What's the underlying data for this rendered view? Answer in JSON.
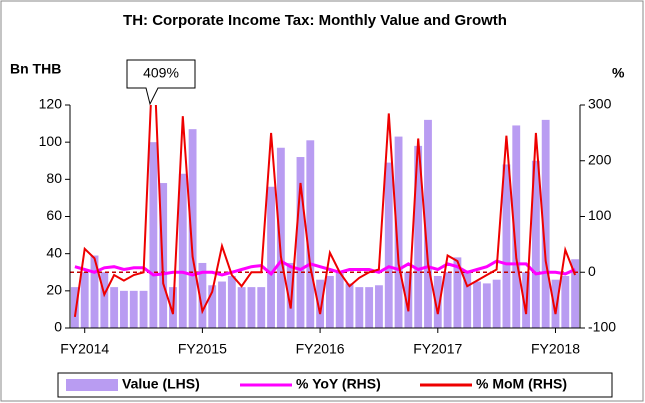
{
  "chart_data": {
    "type": "combo",
    "title": "TH: Corporate Income Tax: Monthly Value and Growth",
    "y_label": "Bn THB",
    "y2_label": "%",
    "annotation": "409%",
    "categories": [
      null,
      "FY2014",
      null,
      null,
      null,
      null,
      null,
      null,
      null,
      null,
      null,
      null,
      null,
      "FY2015",
      null,
      null,
      null,
      null,
      null,
      null,
      null,
      null,
      null,
      null,
      null,
      "FY2016",
      null,
      null,
      null,
      null,
      null,
      null,
      null,
      null,
      null,
      null,
      null,
      "FY2017",
      null,
      null,
      null,
      null,
      null,
      null,
      null,
      null,
      null,
      null,
      null,
      "FY2018",
      null,
      null
    ],
    "ylim": [
      0,
      120
    ],
    "yticks": [
      0,
      20,
      40,
      60,
      80,
      100,
      120
    ],
    "y2lim": [
      -100,
      300
    ],
    "y2ticks": [
      -100,
      0,
      100,
      200,
      300
    ],
    "series": [
      {
        "name": "Value (LHS)",
        "type": "bar",
        "color": "#b99cf2",
        "axis": "y",
        "values": [
          22,
          30,
          39,
          30,
          22,
          20,
          20,
          20,
          100,
          78,
          22,
          83,
          107,
          35,
          23,
          25,
          28,
          22,
          22,
          22,
          76,
          97,
          35,
          92,
          101,
          26,
          28,
          30,
          24,
          22,
          22,
          23,
          89,
          103,
          30,
          98,
          112,
          28,
          30,
          38,
          30,
          25,
          24,
          26,
          88,
          109,
          30,
          90,
          112,
          26,
          28,
          37
        ]
      },
      {
        "name": "% YoY (RHS)",
        "type": "line",
        "color": "#ff00ff",
        "axis": "y2",
        "values": [
          10,
          5,
          0,
          8,
          10,
          5,
          8,
          8,
          -5,
          -3,
          0,
          0,
          -5,
          0,
          0,
          -5,
          0,
          5,
          10,
          12,
          -3,
          20,
          10,
          5,
          15,
          10,
          5,
          0,
          5,
          5,
          5,
          0,
          10,
          5,
          15,
          5,
          10,
          5,
          15,
          10,
          0,
          5,
          10,
          20,
          15,
          15,
          15,
          -3,
          0,
          0,
          -3,
          5
        ]
      },
      {
        "name": "% MoM (RHS)",
        "type": "line",
        "color": "#ee0000",
        "axis": "y2",
        "values": [
          -80,
          42,
          25,
          -40,
          -5,
          -15,
          -5,
          0,
          409,
          -20,
          -75,
          280,
          28,
          -70,
          -35,
          47,
          -5,
          -25,
          0,
          0,
          250,
          28,
          -65,
          160,
          10,
          -75,
          35,
          0,
          -25,
          -10,
          0,
          5,
          285,
          15,
          -70,
          240,
          15,
          -75,
          30,
          20,
          -25,
          -15,
          -5,
          5,
          245,
          25,
          -75,
          250,
          20,
          -75,
          40,
          -5
        ]
      }
    ]
  }
}
